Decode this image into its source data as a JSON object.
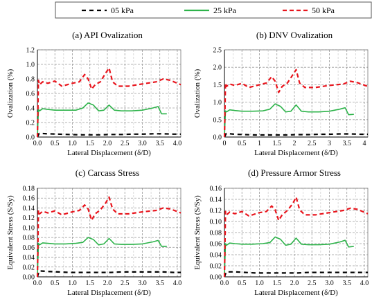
{
  "legend": [
    {
      "label": "05 kPa",
      "color": "#000000",
      "dash": "6,5"
    },
    {
      "label": "25 kPa",
      "color": "#2db34a",
      "dash": ""
    },
    {
      "label": "50 kPa",
      "color": "#e8141c",
      "dash": "6,4"
    }
  ],
  "chart_data": [
    {
      "type": "line",
      "title": "(a) API Ovalization",
      "xlabel": "Lateral Displacement (δ/D)",
      "ylabel": "Ovalization (%)",
      "xlim": [
        0,
        4.1
      ],
      "ylim": [
        0,
        1.2
      ],
      "xticks": [
        "0.0",
        "0.5",
        "1.0",
        "1.5",
        "2.0",
        "2.5",
        "3.0",
        "3.5",
        "4.0"
      ],
      "yticks": [
        "0.0",
        "0.2",
        "0.4",
        "0.6",
        "0.8",
        "1.0",
        "1.2"
      ],
      "grid": true,
      "series": [
        {
          "name": "05 kPa",
          "x": [
            0,
            0.05,
            0.1,
            0.3,
            0.6,
            0.9,
            1.2,
            1.5,
            1.8,
            2.1,
            2.4,
            2.7,
            3.0,
            3.3,
            3.6,
            3.9,
            4.1
          ],
          "y": [
            0,
            0.05,
            0.05,
            0.045,
            0.04,
            0.035,
            0.03,
            0.03,
            0.03,
            0.035,
            0.035,
            0.04,
            0.04,
            0.045,
            0.045,
            0.04,
            0.04
          ]
        },
        {
          "name": "25 kPa",
          "x": [
            0,
            0.03,
            0.06,
            0.15,
            0.3,
            0.5,
            0.8,
            1.1,
            1.3,
            1.45,
            1.6,
            1.75,
            1.9,
            2.05,
            2.2,
            2.4,
            2.7,
            3.0,
            3.3,
            3.45,
            3.55,
            3.7
          ],
          "y": [
            0,
            0.38,
            0.36,
            0.39,
            0.38,
            0.37,
            0.37,
            0.37,
            0.4,
            0.47,
            0.44,
            0.36,
            0.37,
            0.44,
            0.37,
            0.36,
            0.36,
            0.37,
            0.4,
            0.42,
            0.32,
            0.32
          ]
        },
        {
          "name": "50 kPa",
          "x": [
            0,
            0.03,
            0.06,
            0.15,
            0.3,
            0.5,
            0.7,
            1.0,
            1.2,
            1.35,
            1.45,
            1.55,
            1.65,
            1.8,
            1.95,
            2.05,
            2.15,
            2.3,
            2.6,
            3.0,
            3.4,
            3.6,
            3.8,
            4.1
          ],
          "y": [
            0,
            0.78,
            0.72,
            0.76,
            0.74,
            0.77,
            0.7,
            0.74,
            0.76,
            0.86,
            0.8,
            0.66,
            0.72,
            0.76,
            0.88,
            0.95,
            0.76,
            0.7,
            0.7,
            0.73,
            0.76,
            0.8,
            0.78,
            0.72
          ]
        }
      ]
    },
    {
      "type": "line",
      "title": "(b) DNV Ovalization",
      "xlabel": "Lateral Displacement (δ/D)",
      "ylabel": "Ovalization (%)",
      "xlim": [
        0,
        4.1
      ],
      "ylim": [
        0,
        2.5
      ],
      "xticks": [
        "0",
        "0.5",
        "1",
        "1.5",
        "2",
        "2.5",
        "3",
        "3.5",
        "4"
      ],
      "yticks": [
        "0.0",
        "0.5",
        "1.0",
        "1.5",
        "2.0",
        "2.5"
      ],
      "grid": true,
      "series": [
        {
          "name": "05 kPa",
          "x": [
            0,
            0.05,
            0.1,
            0.3,
            0.6,
            0.9,
            1.2,
            1.5,
            1.8,
            2.1,
            2.4,
            2.7,
            3.0,
            3.3,
            3.6,
            3.9,
            4.1
          ],
          "y": [
            0,
            0.1,
            0.1,
            0.08,
            0.07,
            0.06,
            0.06,
            0.06,
            0.06,
            0.07,
            0.07,
            0.08,
            0.08,
            0.09,
            0.09,
            0.08,
            0.08
          ]
        },
        {
          "name": "25 kPa",
          "x": [
            0,
            0.03,
            0.06,
            0.15,
            0.3,
            0.5,
            0.8,
            1.1,
            1.3,
            1.45,
            1.6,
            1.75,
            1.9,
            2.05,
            2.2,
            2.4,
            2.7,
            3.0,
            3.3,
            3.45,
            3.55,
            3.7
          ],
          "y": [
            0,
            0.75,
            0.72,
            0.78,
            0.76,
            0.74,
            0.74,
            0.75,
            0.8,
            0.95,
            0.88,
            0.72,
            0.74,
            0.92,
            0.74,
            0.72,
            0.72,
            0.74,
            0.8,
            0.84,
            0.64,
            0.65
          ]
        },
        {
          "name": "50 kPa",
          "x": [
            0,
            0.03,
            0.06,
            0.15,
            0.3,
            0.5,
            0.7,
            1.0,
            1.2,
            1.35,
            1.45,
            1.55,
            1.65,
            1.8,
            1.95,
            2.05,
            2.15,
            2.3,
            2.6,
            3.0,
            3.4,
            3.6,
            3.8,
            4.1
          ],
          "y": [
            0,
            1.55,
            1.45,
            1.52,
            1.48,
            1.54,
            1.42,
            1.5,
            1.55,
            1.73,
            1.6,
            1.28,
            1.45,
            1.55,
            1.78,
            1.93,
            1.55,
            1.42,
            1.42,
            1.48,
            1.52,
            1.6,
            1.56,
            1.45
          ]
        }
      ]
    },
    {
      "type": "line",
      "title": "(c) Carcass Stress",
      "xlabel": "Lateral Displacement (δ/D)",
      "ylabel": "Equivalent Stress (S/Sy)",
      "xlim": [
        0,
        4.1
      ],
      "ylim": [
        0,
        0.18
      ],
      "xticks": [
        "0.0",
        "0.5",
        "1.0",
        "1.5",
        "2.0",
        "2.5",
        "3.0",
        "3.5",
        "4.0"
      ],
      "yticks": [
        "0.00",
        "0.02",
        "0.04",
        "0.06",
        "0.08",
        "0.10",
        "0.12",
        "0.14",
        "0.16",
        "0.18"
      ],
      "grid": true,
      "series": [
        {
          "name": "05 kPa",
          "x": [
            0,
            0.05,
            0.1,
            0.3,
            0.6,
            0.9,
            1.2,
            1.5,
            1.8,
            2.1,
            2.4,
            2.7,
            3.0,
            3.3,
            3.6,
            3.9,
            4.1
          ],
          "y": [
            0,
            0.012,
            0.012,
            0.011,
            0.01,
            0.009,
            0.009,
            0.009,
            0.009,
            0.009,
            0.01,
            0.01,
            0.01,
            0.01,
            0.01,
            0.009,
            0.009
          ]
        },
        {
          "name": "25 kPa",
          "x": [
            0,
            0.03,
            0.06,
            0.15,
            0.3,
            0.5,
            0.8,
            1.1,
            1.3,
            1.45,
            1.6,
            1.75,
            1.9,
            2.05,
            2.2,
            2.4,
            2.7,
            3.0,
            3.3,
            3.45,
            3.55,
            3.7
          ],
          "y": [
            0,
            0.068,
            0.065,
            0.069,
            0.068,
            0.067,
            0.067,
            0.068,
            0.07,
            0.08,
            0.076,
            0.065,
            0.067,
            0.078,
            0.067,
            0.066,
            0.066,
            0.067,
            0.071,
            0.074,
            0.062,
            0.062
          ]
        },
        {
          "name": "50 kPa",
          "x": [
            0,
            0.03,
            0.06,
            0.15,
            0.3,
            0.5,
            0.7,
            1.0,
            1.2,
            1.35,
            1.45,
            1.55,
            1.65,
            1.8,
            1.95,
            2.05,
            2.15,
            2.3,
            2.6,
            3.0,
            3.4,
            3.6,
            3.8,
            4.1
          ],
          "y": [
            0,
            0.135,
            0.128,
            0.133,
            0.13,
            0.134,
            0.126,
            0.132,
            0.135,
            0.146,
            0.138,
            0.115,
            0.128,
            0.136,
            0.15,
            0.162,
            0.138,
            0.128,
            0.128,
            0.132,
            0.135,
            0.14,
            0.138,
            0.13
          ]
        }
      ]
    },
    {
      "type": "line",
      "title": "(d) Pressure Armor Stress",
      "xlabel": "Lateral Displacement (δ/D)",
      "ylabel": "Equivalent Stress (S/Sy)",
      "xlim": [
        0,
        4.1
      ],
      "ylim": [
        0,
        0.16
      ],
      "xticks": [
        "0.0",
        "0.5",
        "1.0",
        "1.5",
        "2.0",
        "2.5",
        "3.0",
        "3.5",
        "4.0"
      ],
      "yticks": [
        "0.00",
        "0.02",
        "0.04",
        "0.06",
        "0.08",
        "0.10",
        "0.12",
        "0.14",
        "0.16"
      ],
      "grid": true,
      "series": [
        {
          "name": "05 kPa",
          "x": [
            0,
            0.05,
            0.1,
            0.3,
            0.6,
            0.9,
            1.2,
            1.5,
            1.8,
            2.1,
            2.4,
            2.7,
            3.0,
            3.3,
            3.6,
            3.9,
            4.1
          ],
          "y": [
            0,
            0.009,
            0.009,
            0.009,
            0.008,
            0.007,
            0.007,
            0.007,
            0.007,
            0.007,
            0.008,
            0.008,
            0.008,
            0.008,
            0.008,
            0.008,
            0.008
          ]
        },
        {
          "name": "25 kPa",
          "x": [
            0,
            0.03,
            0.06,
            0.15,
            0.3,
            0.5,
            0.8,
            1.1,
            1.3,
            1.45,
            1.6,
            1.75,
            1.9,
            2.05,
            2.2,
            2.4,
            2.7,
            3.0,
            3.3,
            3.45,
            3.55,
            3.7
          ],
          "y": [
            0,
            0.06,
            0.057,
            0.061,
            0.06,
            0.059,
            0.059,
            0.06,
            0.062,
            0.072,
            0.068,
            0.057,
            0.059,
            0.07,
            0.059,
            0.058,
            0.058,
            0.059,
            0.063,
            0.066,
            0.054,
            0.055
          ]
        },
        {
          "name": "50 kPa",
          "x": [
            0,
            0.03,
            0.06,
            0.15,
            0.3,
            0.5,
            0.7,
            1.0,
            1.2,
            1.35,
            1.45,
            1.55,
            1.65,
            1.8,
            1.95,
            2.05,
            2.15,
            2.3,
            2.6,
            3.0,
            3.4,
            3.6,
            3.8,
            4.1
          ],
          "y": [
            0,
            0.118,
            0.112,
            0.117,
            0.114,
            0.118,
            0.11,
            0.116,
            0.118,
            0.128,
            0.121,
            0.102,
            0.112,
            0.12,
            0.132,
            0.144,
            0.121,
            0.112,
            0.112,
            0.116,
            0.12,
            0.124,
            0.122,
            0.114
          ]
        }
      ]
    }
  ]
}
